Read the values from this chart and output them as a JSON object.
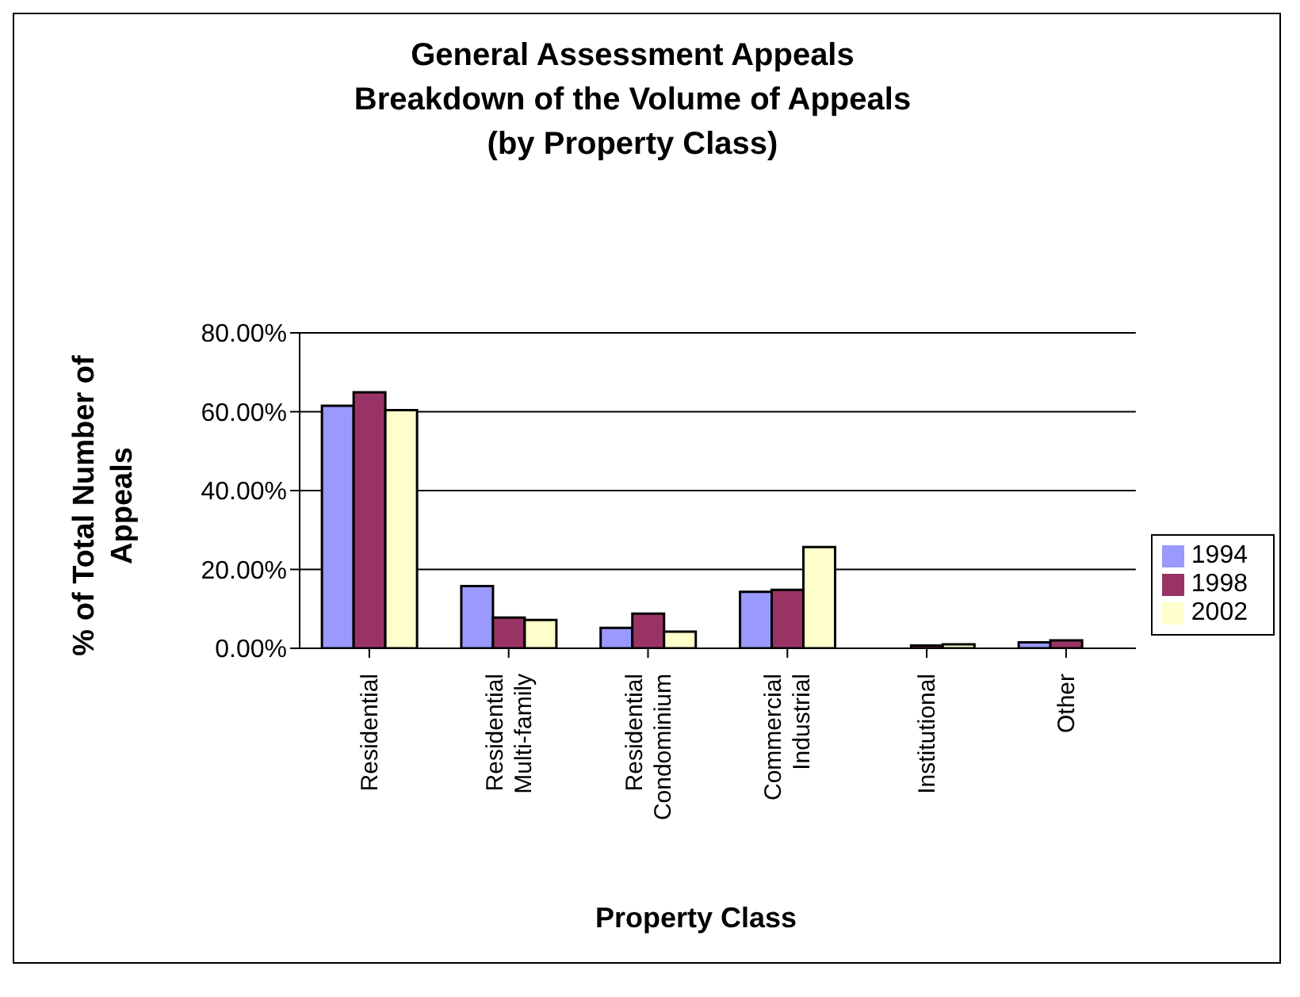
{
  "chart_data": {
    "type": "bar",
    "title": "General Assessment Appeals\nBreakdown of the Volume of Appeals\n(by Property Class)",
    "xlabel": "Property Class",
    "ylabel": "% of Total Number of Appeals",
    "categories": [
      "Residential",
      "Residential Multi-family",
      "Residential Condominium",
      "Commercial Industrial",
      "Institutional",
      "Other"
    ],
    "series": [
      {
        "name": "1994",
        "color": "#9999ff",
        "values": [
          61.5,
          15.8,
          5.2,
          14.3,
          null,
          1.5
        ]
      },
      {
        "name": "1998",
        "color": "#993366",
        "values": [
          64.9,
          7.8,
          8.8,
          14.8,
          0.7,
          2.0
        ]
      },
      {
        "name": "2002",
        "color": "#ffffcc",
        "values": [
          60.4,
          7.2,
          4.2,
          25.7,
          1.0,
          null
        ]
      }
    ],
    "ylim": [
      0,
      80
    ],
    "yticks": [
      {
        "value": 0,
        "label": "0.00%"
      },
      {
        "value": 20,
        "label": "20.00%"
      },
      {
        "value": 40,
        "label": "40.00%"
      },
      {
        "value": 60,
        "label": "60.00%"
      },
      {
        "value": 80,
        "label": "80.00%"
      }
    ],
    "grid": "y",
    "legend": "right"
  }
}
